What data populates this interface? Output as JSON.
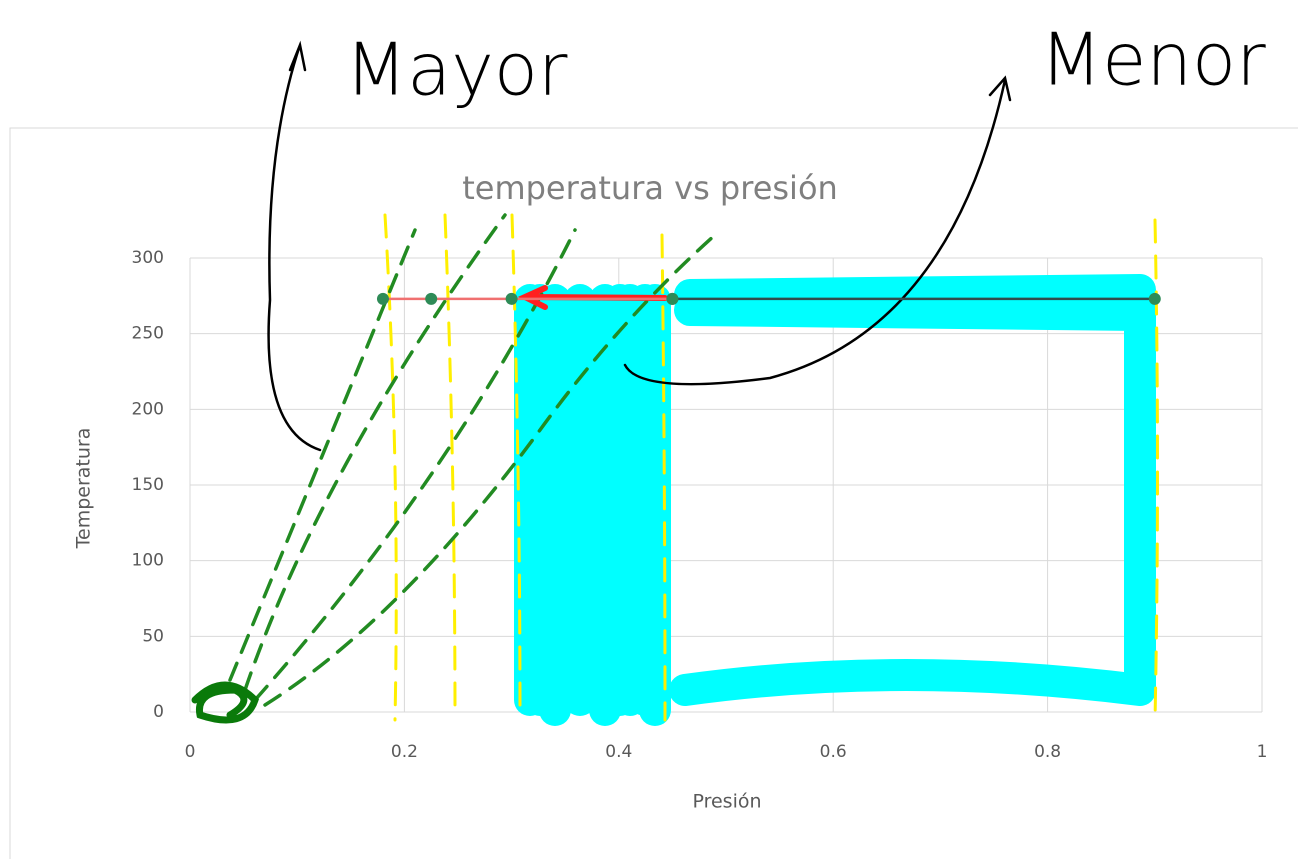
{
  "chart_data": {
    "type": "scatter",
    "title": "temperatura vs presión",
    "x_label": "Presión",
    "y_label": "Temperatura",
    "xlim": [
      0,
      1
    ],
    "xticks": [
      0,
      0.2,
      0.4,
      0.6,
      0.8,
      1
    ],
    "ylim": [
      0,
      300
    ],
    "yticks": [
      0,
      50,
      100,
      150,
      200,
      250,
      300
    ],
    "grid": true,
    "series": [
      {
        "color": "#f07070",
        "x": [
          0.18,
          0.225,
          0.3,
          0.45
        ],
        "values": [
          273,
          273,
          273,
          273
        ]
      },
      {
        "color": "#2f4f4f",
        "x": [
          0.45,
          0.9
        ],
        "values": [
          273,
          273
        ]
      }
    ],
    "annotations": [
      {
        "text": "Mayor"
      },
      {
        "text": "Menor"
      }
    ]
  }
}
